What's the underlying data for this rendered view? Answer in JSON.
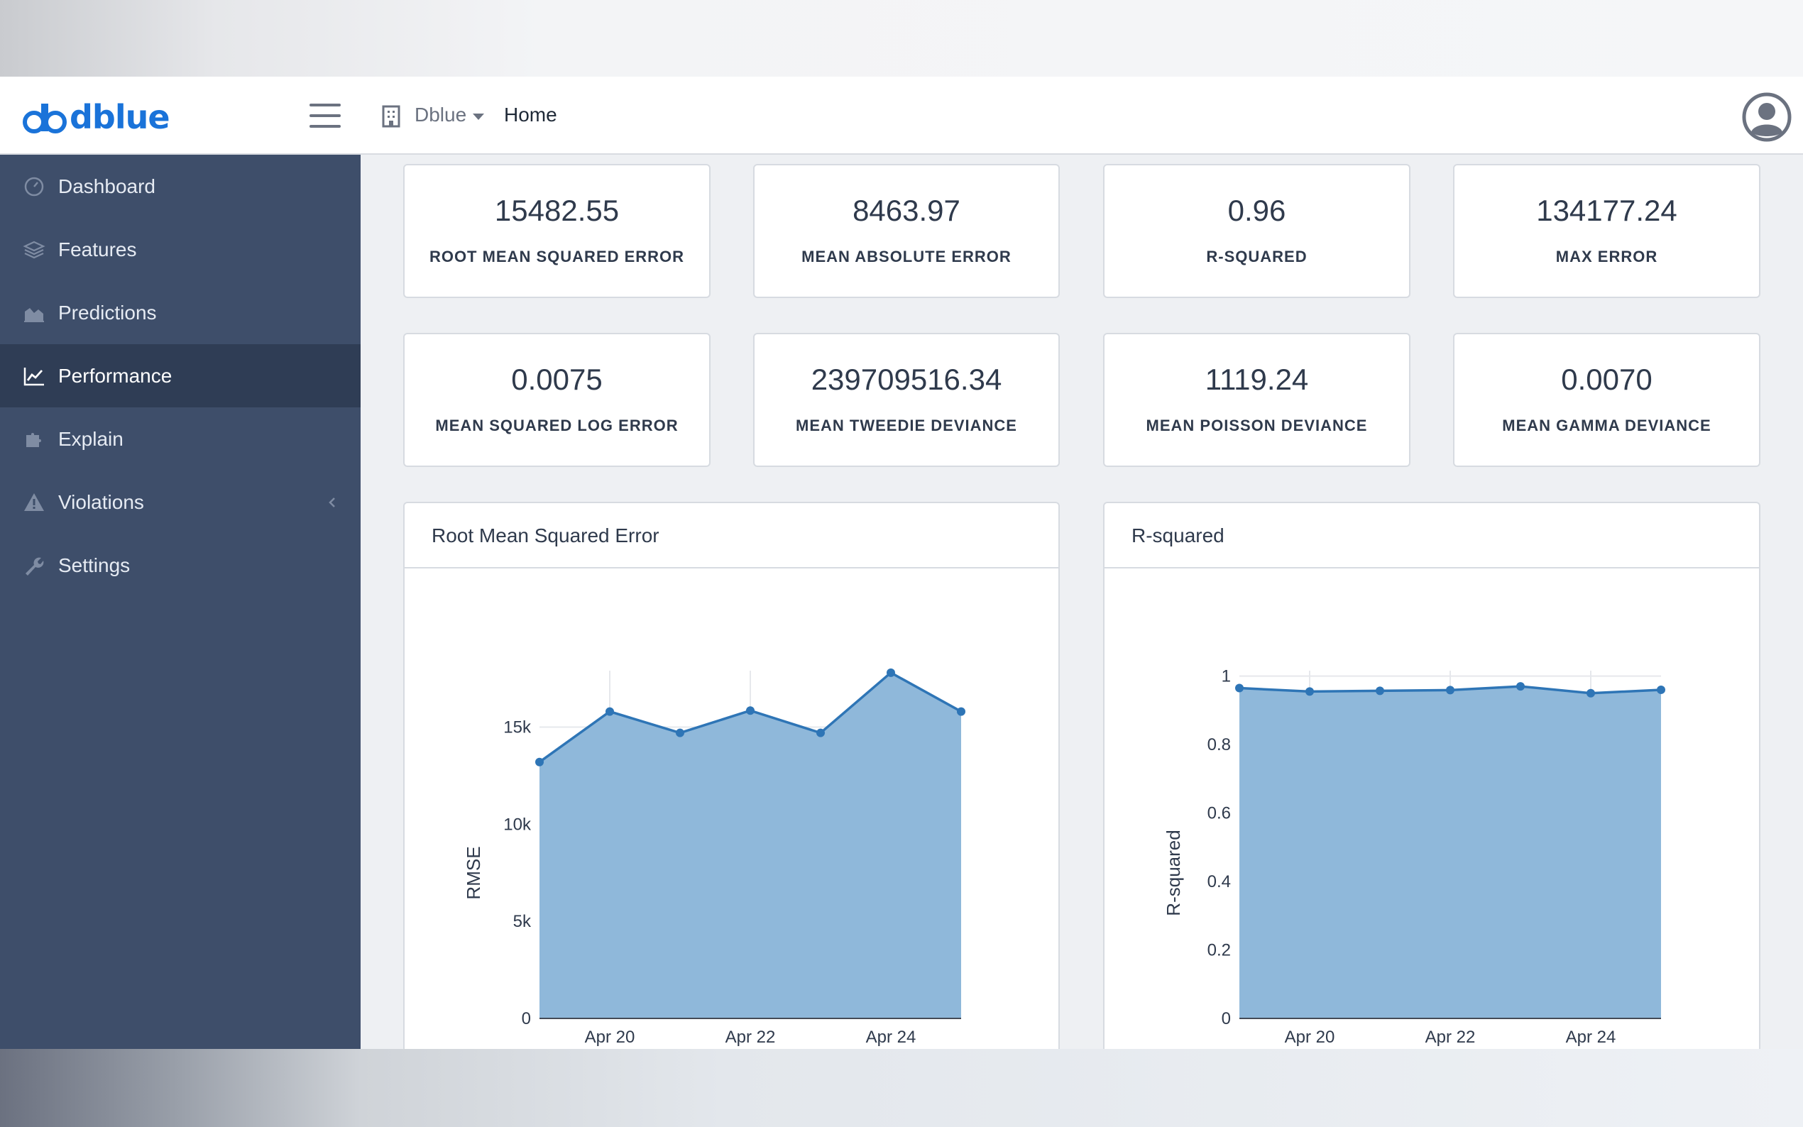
{
  "brand": {
    "name": "dblue"
  },
  "topbar": {
    "org": "Dblue",
    "breadcrumb": "Home"
  },
  "sidebar": {
    "items": [
      {
        "label": "Dashboard",
        "icon": "dashboard-gauge-icon"
      },
      {
        "label": "Features",
        "icon": "layers-icon"
      },
      {
        "label": "Predictions",
        "icon": "area-chart-icon"
      },
      {
        "label": "Performance",
        "icon": "line-chart-icon",
        "active": true
      },
      {
        "label": "Explain",
        "icon": "puzzle-icon"
      },
      {
        "label": "Violations",
        "icon": "warning-icon",
        "has_submenu": true
      },
      {
        "label": "Settings",
        "icon": "wrench-icon"
      }
    ]
  },
  "metrics": [
    {
      "value": "15482.55",
      "label": "ROOT MEAN SQUARED ERROR"
    },
    {
      "value": "8463.97",
      "label": "MEAN ABSOLUTE ERROR"
    },
    {
      "value": "0.96",
      "label": "R-SQUARED"
    },
    {
      "value": "134177.24",
      "label": "MAX ERROR"
    },
    {
      "value": "0.0075",
      "label": "MEAN SQUARED LOG ERROR"
    },
    {
      "value": "239709516.34",
      "label": "MEAN TWEEDIE DEVIANCE"
    },
    {
      "value": "1119.24",
      "label": "MEAN POISSON DEVIANCE"
    },
    {
      "value": "0.0070",
      "label": "MEAN GAMMA DEVIANCE"
    }
  ],
  "colors": {
    "line": "#2e75b6",
    "fill": "#8fb8da",
    "sidebar": "#3e4e6a",
    "brand": "#1a73d9"
  },
  "chart_data": [
    {
      "type": "area",
      "title": "Root Mean Squared Error",
      "ylabel": "RMSE",
      "x": [
        "2021-04-19",
        "2021-04-20",
        "2021-04-21",
        "2021-04-22",
        "2021-04-23",
        "2021-04-24",
        "2021-04-25"
      ],
      "values": [
        13200,
        15800,
        14700,
        15850,
        14700,
        17800,
        15800
      ],
      "xticks": [
        "Apr 20",
        "Apr 22",
        "Apr 24"
      ],
      "yticks": [
        "0",
        "5k",
        "10k",
        "15k"
      ],
      "ylim": [
        0,
        19000
      ],
      "grid": true
    },
    {
      "type": "area",
      "title": "R-squared",
      "ylabel": "R-squared",
      "x": [
        "2021-04-19",
        "2021-04-20",
        "2021-04-21",
        "2021-04-22",
        "2021-04-23",
        "2021-04-24",
        "2021-04-25"
      ],
      "values": [
        0.965,
        0.955,
        0.957,
        0.959,
        0.97,
        0.95,
        0.96
      ],
      "xticks": [
        "Apr 20",
        "Apr 22",
        "Apr 24"
      ],
      "yticks": [
        "0",
        "0.2",
        "0.4",
        "0.6",
        "0.8",
        "1"
      ],
      "ylim": [
        0,
        1.02
      ],
      "grid": true
    }
  ]
}
